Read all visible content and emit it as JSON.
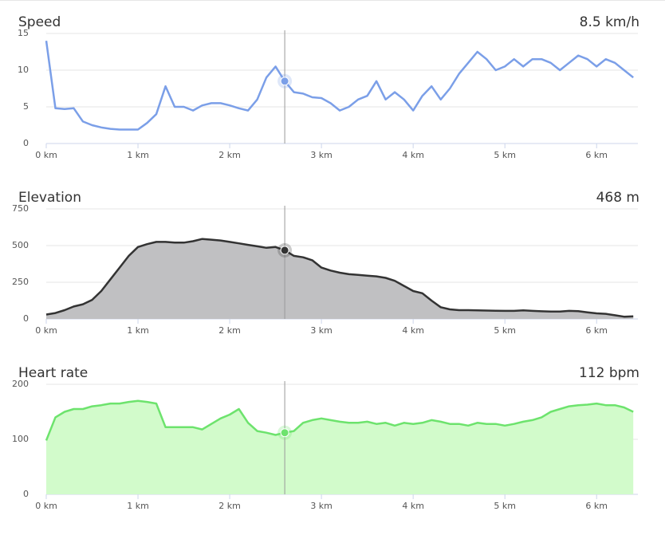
{
  "chart_data": [
    {
      "type": "line",
      "title": "Speed",
      "highlight": {
        "x": 2.6,
        "value": 8.5,
        "label": "8.5 km/h"
      },
      "color": "#7b9fe8",
      "x": [
        0,
        0.1,
        0.2,
        0.3,
        0.4,
        0.5,
        0.6,
        0.7,
        0.8,
        0.9,
        1,
        1.1,
        1.2,
        1.3,
        1.4,
        1.5,
        1.6,
        1.7,
        1.8,
        1.9,
        2,
        2.1,
        2.2,
        2.3,
        2.4,
        2.5,
        2.6,
        2.7,
        2.8,
        2.9,
        3,
        3.1,
        3.2,
        3.3,
        3.4,
        3.5,
        3.6,
        3.7,
        3.8,
        3.9,
        4,
        4.1,
        4.2,
        4.3,
        4.4,
        4.5,
        4.6,
        4.7,
        4.8,
        4.9,
        5,
        5.1,
        5.2,
        5.3,
        5.4,
        5.5,
        5.6,
        5.7,
        5.8,
        5.9,
        6,
        6.1,
        6.2,
        6.3,
        6.4
      ],
      "values": [
        14,
        4.8,
        4.7,
        4.8,
        3,
        2.5,
        2.2,
        2,
        1.9,
        1.9,
        1.9,
        2.8,
        4,
        7.8,
        5,
        5,
        4.5,
        5.2,
        5.5,
        5.5,
        5.2,
        4.8,
        4.5,
        6,
        9,
        10.5,
        8.5,
        7,
        6.8,
        6.3,
        6.2,
        5.5,
        4.5,
        5,
        6,
        6.5,
        8.5,
        6,
        7,
        6,
        4.5,
        6.5,
        7.8,
        6,
        7.5,
        9.5,
        11,
        12.5,
        11.5,
        10,
        10.5,
        11.5,
        10.5,
        11.5,
        11.5,
        11,
        10,
        11,
        12,
        11.5,
        10.5,
        11.5,
        11,
        10,
        9
      ],
      "xlim": [
        0,
        6.45
      ],
      "ylim": [
        0,
        15
      ],
      "yticks": [
        0,
        5,
        10,
        15
      ],
      "xticks": [
        {
          "value": 0,
          "label": "0 km"
        },
        {
          "value": 1,
          "label": "1 km"
        },
        {
          "value": 2,
          "label": "2 km"
        },
        {
          "value": 3,
          "label": "3 km"
        },
        {
          "value": 4,
          "label": "4 km"
        },
        {
          "value": 5,
          "label": "5 km"
        },
        {
          "value": 6,
          "label": "6 km"
        }
      ],
      "grid": true
    },
    {
      "type": "area",
      "title": "Elevation",
      "highlight": {
        "x": 2.6,
        "value": 468,
        "label": "468 m"
      },
      "color": "#333333",
      "fill": "#c0c0c2",
      "x": [
        0,
        0.1,
        0.2,
        0.3,
        0.4,
        0.5,
        0.6,
        0.7,
        0.8,
        0.9,
        1,
        1.1,
        1.2,
        1.3,
        1.4,
        1.5,
        1.6,
        1.7,
        1.8,
        1.9,
        2,
        2.1,
        2.2,
        2.3,
        2.4,
        2.5,
        2.6,
        2.7,
        2.8,
        2.9,
        3,
        3.1,
        3.2,
        3.3,
        3.4,
        3.5,
        3.6,
        3.7,
        3.8,
        3.9,
        4,
        4.1,
        4.2,
        4.3,
        4.4,
        4.5,
        4.6,
        4.7,
        4.8,
        4.9,
        5,
        5.1,
        5.2,
        5.3,
        5.4,
        5.5,
        5.6,
        5.7,
        5.8,
        5.9,
        6,
        6.1,
        6.2,
        6.3,
        6.4
      ],
      "values": [
        30,
        40,
        60,
        85,
        100,
        130,
        190,
        270,
        350,
        430,
        490,
        510,
        525,
        525,
        520,
        520,
        530,
        545,
        540,
        535,
        525,
        515,
        505,
        495,
        485,
        490,
        468,
        430,
        420,
        400,
        350,
        330,
        315,
        305,
        300,
        295,
        290,
        280,
        260,
        225,
        190,
        175,
        125,
        80,
        65,
        60,
        60,
        58,
        57,
        56,
        55,
        55,
        58,
        55,
        52,
        50,
        50,
        55,
        53,
        45,
        38,
        35,
        25,
        15,
        18
      ],
      "xlim": [
        0,
        6.45
      ],
      "ylim": [
        0,
        750
      ],
      "yticks": [
        0,
        250,
        500,
        750
      ],
      "xticks": [
        {
          "value": 0,
          "label": "0 km"
        },
        {
          "value": 1,
          "label": "1 km"
        },
        {
          "value": 2,
          "label": "2 km"
        },
        {
          "value": 3,
          "label": "3 km"
        },
        {
          "value": 4,
          "label": "4 km"
        },
        {
          "value": 5,
          "label": "5 km"
        },
        {
          "value": 6,
          "label": "6 km"
        }
      ],
      "grid": true
    },
    {
      "type": "area",
      "title": "Heart rate",
      "highlight": {
        "x": 2.6,
        "value": 112,
        "label": "112 bpm"
      },
      "color": "#6de36d",
      "fill": "#d2fbcb",
      "x": [
        0,
        0.1,
        0.2,
        0.3,
        0.4,
        0.5,
        0.6,
        0.7,
        0.8,
        0.9,
        1,
        1.1,
        1.2,
        1.3,
        1.4,
        1.5,
        1.6,
        1.7,
        1.8,
        1.9,
        2,
        2.1,
        2.2,
        2.3,
        2.4,
        2.5,
        2.6,
        2.7,
        2.8,
        2.9,
        3,
        3.1,
        3.2,
        3.3,
        3.4,
        3.5,
        3.6,
        3.7,
        3.8,
        3.9,
        4,
        4.1,
        4.2,
        4.3,
        4.4,
        4.5,
        4.6,
        4.7,
        4.8,
        4.9,
        5,
        5.1,
        5.2,
        5.3,
        5.4,
        5.5,
        5.6,
        5.7,
        5.8,
        5.9,
        6,
        6.1,
        6.2,
        6.3,
        6.4
      ],
      "values": [
        98,
        140,
        150,
        155,
        155,
        160,
        162,
        165,
        165,
        168,
        170,
        168,
        165,
        122,
        122,
        122,
        122,
        118,
        128,
        138,
        145,
        155,
        130,
        115,
        112,
        108,
        112,
        115,
        130,
        135,
        138,
        135,
        132,
        130,
        130,
        132,
        128,
        130,
        125,
        130,
        128,
        130,
        135,
        132,
        128,
        128,
        125,
        130,
        128,
        128,
        125,
        128,
        132,
        135,
        140,
        150,
        155,
        160,
        162,
        163,
        165,
        162,
        162,
        158,
        150
      ],
      "xlim": [
        0,
        6.45
      ],
      "ylim": [
        0,
        200
      ],
      "yticks": [
        0,
        100,
        200
      ],
      "xticks": [
        {
          "value": 0,
          "label": "0 km"
        },
        {
          "value": 1,
          "label": "1 km"
        },
        {
          "value": 2,
          "label": "2 km"
        },
        {
          "value": 3,
          "label": "3 km"
        },
        {
          "value": 4,
          "label": "4 km"
        },
        {
          "value": 5,
          "label": "5 km"
        },
        {
          "value": 6,
          "label": "6 km"
        }
      ],
      "grid": true
    }
  ]
}
